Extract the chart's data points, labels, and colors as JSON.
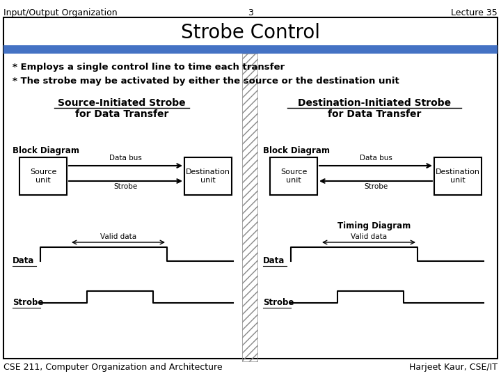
{
  "title": "Strobe Control",
  "header_left": "Input/Output Organization",
  "header_center": "3",
  "header_right": "Lecture 35",
  "footer_left": "CSE 211, Computer Organization and Architecture",
  "footer_right": "Harjeet Kaur, CSE/IT",
  "bullet1": "* Employs a single control line to time each transfer",
  "bullet2": "* The strobe may be activated by either the source or the destination unit",
  "left_title1": "Source-Initiated Strobe",
  "left_title2": "for Data Transfer",
  "right_title1": "Destination-Initiated Strobe",
  "right_title2": "for Data Transfer",
  "block_diagram_label": "Block Diagram",
  "timing_diagram_label": "Timing Diagram",
  "data_label": "Data",
  "strobe_label": "Strobe",
  "valid_data_label": "Valid data",
  "source_unit": "Source\nunit",
  "destination_unit": "Destination\nunit",
  "blue_bar_color": "#4472C4",
  "bg_color": "#FFFFFF",
  "border_color": "#000000"
}
